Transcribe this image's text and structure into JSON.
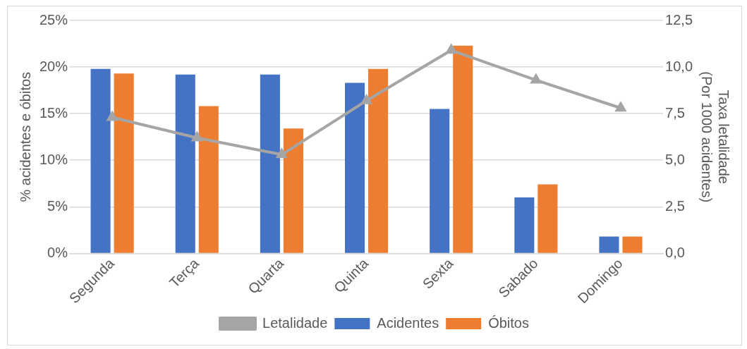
{
  "chart_data": {
    "type": "bar",
    "categories": [
      "Segunda",
      "Terça",
      "Quarta",
      "Quinta",
      "Sexta",
      "Sabado",
      "Domingo"
    ],
    "series": [
      {
        "name": "Acidentes",
        "color": "#4472c4",
        "values": [
          19.8,
          19.2,
          19.2,
          18.3,
          15.5,
          6.0,
          1.8
        ]
      },
      {
        "name": "Óbitos",
        "color": "#ed7d31",
        "values": [
          19.3,
          15.8,
          13.4,
          19.8,
          22.3,
          7.4,
          1.8
        ]
      },
      {
        "name": "Letalidade",
        "type": "line",
        "axis": "y2",
        "color": "#a5a5a5",
        "marker": "triangle",
        "values": [
          7.3,
          6.2,
          5.3,
          8.2,
          10.9,
          9.3,
          7.8
        ]
      }
    ],
    "ylabel": "% acidentes e óbitos",
    "y2label": "Taxa letalidade\n(Por 1000 acidentes)",
    "ylim": [
      0,
      25
    ],
    "yticks": [
      {
        "value": 0,
        "label": "0%"
      },
      {
        "value": 5,
        "label": "5%"
      },
      {
        "value": 10,
        "label": "10%"
      },
      {
        "value": 15,
        "label": "15%"
      },
      {
        "value": 20,
        "label": "20%"
      },
      {
        "value": 25,
        "label": "25%"
      }
    ],
    "y2lim": [
      0,
      12.5
    ],
    "y2ticks": [
      {
        "value": 0,
        "label": "0,0"
      },
      {
        "value": 2.5,
        "label": "2,5"
      },
      {
        "value": 5,
        "label": "5,0"
      },
      {
        "value": 7.5,
        "label": "7,5"
      },
      {
        "value": 10,
        "label": "10,0"
      },
      {
        "value": 12.5,
        "label": "12,5"
      }
    ],
    "grid": "y",
    "legend": "bottom"
  }
}
